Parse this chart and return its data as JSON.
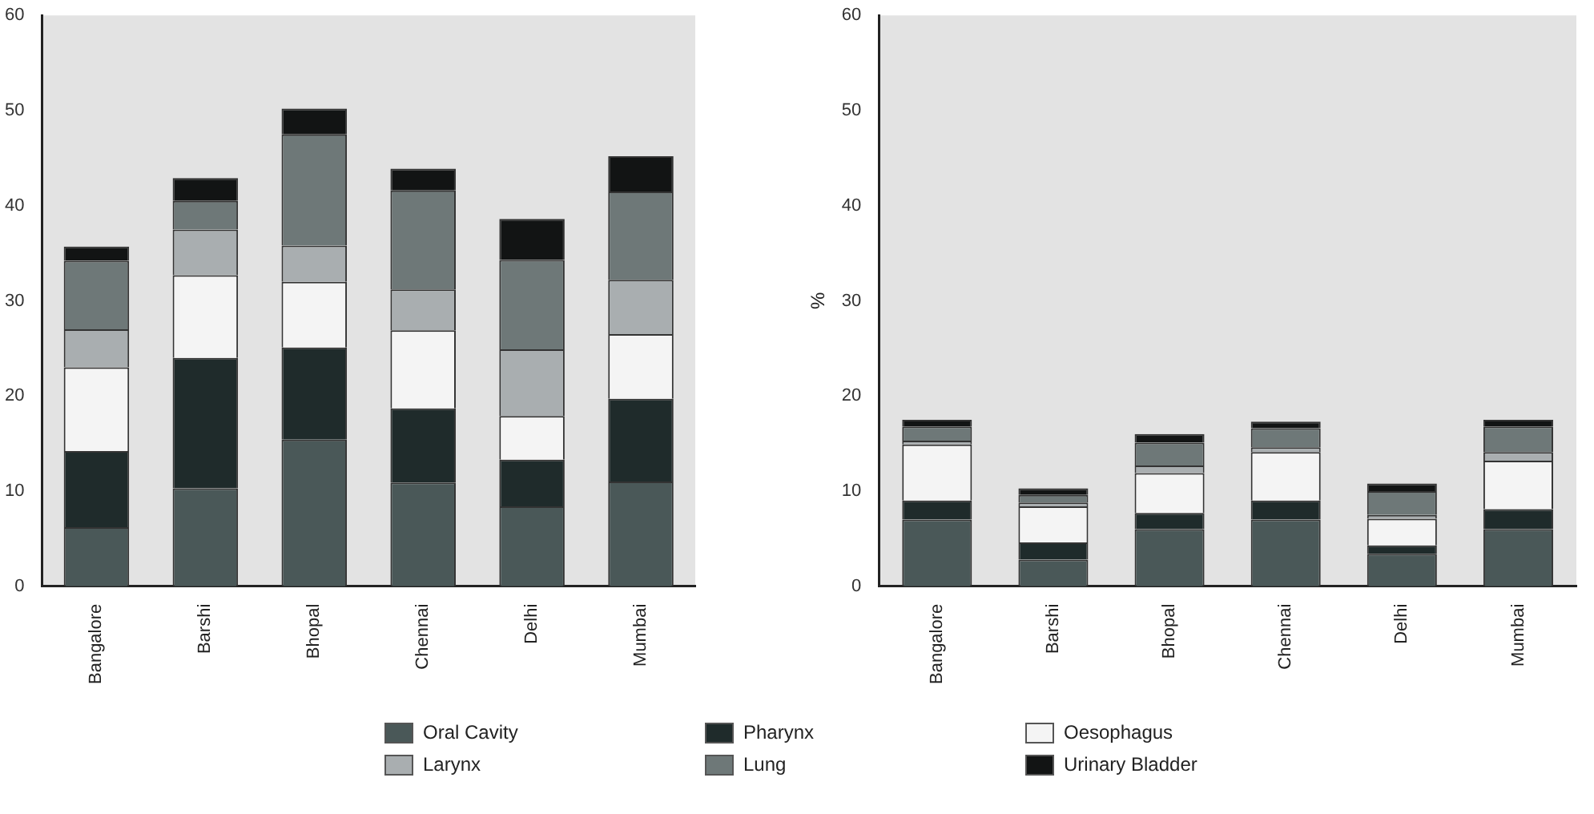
{
  "chart_data": [
    {
      "type": "bar",
      "stacked": true,
      "categories": [
        "Bangalore",
        "Barshi",
        "Bhopal",
        "Chennai",
        "Delhi",
        "Mumbai"
      ],
      "ylim": [
        0,
        60
      ],
      "yticks": [
        0,
        10,
        20,
        30,
        40,
        50,
        60
      ],
      "grid": false,
      "legend": "bottom",
      "series": [
        {
          "name": "Oral Cavity",
          "color": "#4a5858",
          "values": [
            6.2,
            10.3,
            15.4,
            10.9,
            8.4,
            11
          ]
        },
        {
          "name": "Pharynx",
          "color": "#1f2b2b",
          "values": [
            8,
            13.7,
            9.7,
            7.8,
            4.9,
            8.7
          ]
        },
        {
          "name": "Oesophagus",
          "color": "#f4f4f4",
          "values": [
            8.8,
            8.7,
            6.9,
            8.2,
            4.6,
            6.8
          ]
        },
        {
          "name": "Larynx",
          "color": "#a9aeb0",
          "values": [
            4,
            4.8,
            3.8,
            4.3,
            7,
            5.7
          ]
        },
        {
          "name": "Lung",
          "color": "#6e7878",
          "values": [
            7.2,
            3,
            11.7,
            10.4,
            9.4,
            9.3
          ]
        },
        {
          "name": "Urinary Bladder",
          "color": "#121414",
          "values": [
            1.5,
            2.4,
            2.7,
            2.3,
            4.3,
            3.7
          ]
        }
      ]
    },
    {
      "type": "bar",
      "stacked": true,
      "ylabel": "%",
      "categories": [
        "Bangalore",
        "Barshi",
        "Bhopal",
        "Chennai",
        "Delhi",
        "Mumbai"
      ],
      "ylim": [
        0,
        60
      ],
      "yticks": [
        0,
        10,
        20,
        30,
        40,
        50,
        60
      ],
      "grid": false,
      "series": [
        {
          "name": "Oral Cavity",
          "color": "#4a5858",
          "values": [
            7,
            2.8,
            6,
            7,
            3.4,
            6
          ]
        },
        {
          "name": "Pharynx",
          "color": "#1f2b2b",
          "values": [
            2,
            1.8,
            1.7,
            2,
            0.9,
            2.1
          ]
        },
        {
          "name": "Oesophagus",
          "color": "#f4f4f4",
          "values": [
            5.9,
            3.8,
            4.2,
            5.1,
            2.8,
            5.1
          ]
        },
        {
          "name": "Larynx",
          "color": "#a9aeb0",
          "values": [
            0.4,
            0.4,
            0.8,
            0.5,
            0.4,
            0.9
          ]
        },
        {
          "name": "Lung",
          "color": "#6e7878",
          "values": [
            1.5,
            0.8,
            2.4,
            2,
            2.5,
            2.7
          ]
        },
        {
          "name": "Urinary Bladder",
          "color": "#121414",
          "values": [
            0.7,
            0.7,
            0.9,
            0.7,
            0.8,
            0.7
          ]
        }
      ]
    }
  ]
}
